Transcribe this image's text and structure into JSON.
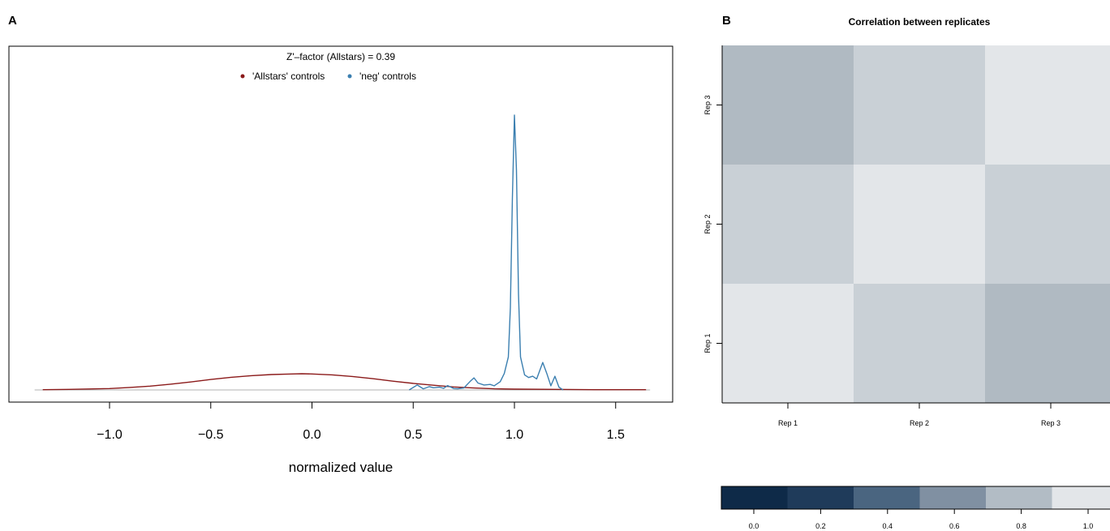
{
  "panels": {
    "a_label": "A",
    "b_label": "B"
  },
  "chart_data": [
    {
      "type": "line",
      "subtype": "density",
      "title": "Z'–factor (Allstars) = 0.39",
      "xlabel": "normalized value",
      "ylabel": "",
      "xlim": [
        -1.37,
        1.8
      ],
      "ylim": [
        0,
        1.0
      ],
      "x_ticks": [
        -1.0,
        -0.5,
        0.0,
        0.5,
        1.0,
        1.5
      ],
      "x_tick_labels": [
        "−1.0",
        "−0.5",
        "0.0",
        "0.5",
        "1.0",
        "1.5"
      ],
      "baseline": 0,
      "legend": {
        "placement": "top-center",
        "entries": [
          {
            "label": "'Allstars' controls",
            "color": "#8b1a1a"
          },
          {
            "label": "'neg' controls",
            "color": "#3b7fb0"
          }
        ]
      },
      "series": [
        {
          "label_ref": 0,
          "color": "#8b1a1a",
          "x": [
            -1.33,
            -1.2,
            -1.0,
            -0.9,
            -0.8,
            -0.7,
            -0.6,
            -0.5,
            -0.4,
            -0.3,
            -0.2,
            -0.1,
            -0.05,
            0.0,
            0.1,
            0.2,
            0.3,
            0.4,
            0.5,
            0.6,
            0.7,
            0.8,
            0.9,
            1.0,
            1.2,
            1.4,
            1.65
          ],
          "y": [
            0.001,
            0.002,
            0.005,
            0.009,
            0.014,
            0.021,
            0.029,
            0.038,
            0.046,
            0.052,
            0.056,
            0.058,
            0.059,
            0.058,
            0.055,
            0.049,
            0.041,
            0.032,
            0.024,
            0.017,
            0.011,
            0.007,
            0.004,
            0.003,
            0.002,
            0.001,
            0.001
          ]
        },
        {
          "label_ref": 1,
          "color": "#3b7fb0",
          "x": [
            0.48,
            0.52,
            0.55,
            0.58,
            0.6,
            0.63,
            0.65,
            0.67,
            0.7,
            0.72,
            0.75,
            0.78,
            0.8,
            0.82,
            0.85,
            0.88,
            0.9,
            0.93,
            0.95,
            0.97,
            0.98,
            0.99,
            1.0,
            1.01,
            1.02,
            1.03,
            1.05,
            1.07,
            1.09,
            1.11,
            1.14,
            1.16,
            1.18,
            1.2,
            1.22,
            1.24
          ],
          "y": [
            0.0,
            0.018,
            0.004,
            0.012,
            0.008,
            0.01,
            0.006,
            0.016,
            0.005,
            0.004,
            0.007,
            0.03,
            0.044,
            0.025,
            0.018,
            0.02,
            0.015,
            0.03,
            0.06,
            0.12,
            0.3,
            0.7,
            1.0,
            0.8,
            0.35,
            0.12,
            0.055,
            0.045,
            0.05,
            0.04,
            0.1,
            0.06,
            0.015,
            0.05,
            0.01,
            0.0
          ]
        }
      ]
    },
    {
      "type": "heatmap",
      "title": "Correlation between replicates",
      "x_categories": [
        "Rep 1",
        "Rep 2",
        "Rep 3"
      ],
      "y_categories": [
        "Rep 1",
        "Rep 2",
        "Rep 3"
      ],
      "values_by_y": [
        [
          1.0,
          0.8,
          0.75
        ],
        [
          0.8,
          1.0,
          0.8
        ],
        [
          0.75,
          0.8,
          1.0
        ]
      ],
      "cell_colors_by_y": [
        [
          "#e3e6e9",
          "#c9d0d6",
          "#b0bac2"
        ],
        [
          "#c9d0d6",
          "#e3e6e9",
          "#c9d0d6"
        ],
        [
          "#b0bac2",
          "#c9d0d6",
          "#e3e6e9"
        ]
      ],
      "colorbar": {
        "colors": [
          "#0e2a48",
          "#1f3b5a",
          "#4a6580",
          "#8090a2",
          "#b2bcc5",
          "#e3e6e9"
        ],
        "ticks": [
          0.0,
          0.2,
          0.4,
          0.6,
          0.8,
          1.0
        ],
        "tick_labels": [
          "0.0",
          "0.2",
          "0.4",
          "0.6",
          "0.8",
          "1.0"
        ]
      }
    }
  ]
}
